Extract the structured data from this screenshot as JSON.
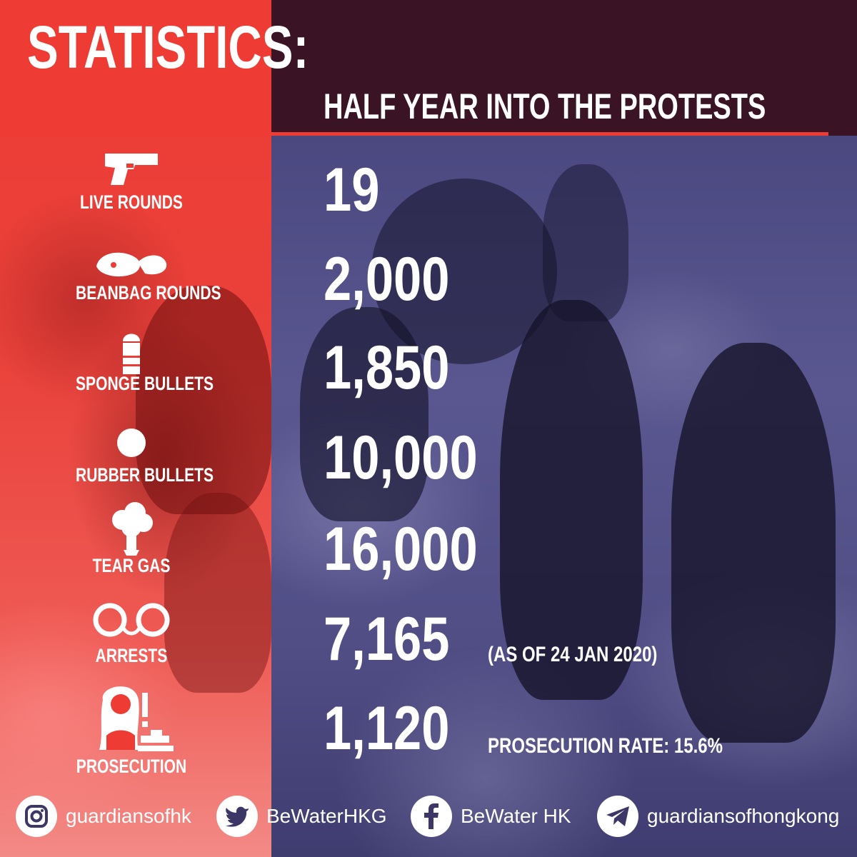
{
  "header": {
    "title": "STATISTICS:",
    "subtitle": "HALF YEAR INTO THE PROTESTS"
  },
  "stats": [
    {
      "label": "LIVE ROUNDS",
      "value": "19",
      "icon": "pistol-icon"
    },
    {
      "label": "BEANBAG ROUNDS",
      "value": "2,000",
      "icon": "beanbag-icon"
    },
    {
      "label": "SPONGE BULLETS",
      "value": "1,850",
      "icon": "sponge-bullet-icon"
    },
    {
      "label": "RUBBER BULLETS",
      "value": "10,000",
      "icon": "rubber-bullet-icon"
    },
    {
      "label": "TEAR GAS",
      "value": "16,000",
      "icon": "tear-gas-cloud-icon"
    },
    {
      "label": "ARRESTS",
      "value": "7,165",
      "icon": "handcuffs-icon",
      "note": "(AS OF 24 JAN 2020)"
    },
    {
      "label": "PROSECUTION",
      "value": "1,120",
      "icon": "judge-icon",
      "note": "PROSECUTION RATE: 15.6%"
    }
  ],
  "footer": {
    "instagram": {
      "handle": "guardiansofhk",
      "icon": "instagram-icon"
    },
    "twitter": {
      "handle": "BeWaterHKG",
      "icon": "twitter-icon"
    },
    "facebook": {
      "handle": "BeWater HK",
      "icon": "facebook-icon"
    },
    "telegram": {
      "handle": "guardiansofhongkong",
      "icon": "telegram-icon"
    }
  },
  "colors": {
    "accent_red": "#ee3c35",
    "header_dark": "#3a1424",
    "background_blue": "#4b4880",
    "text": "#ffffff"
  }
}
